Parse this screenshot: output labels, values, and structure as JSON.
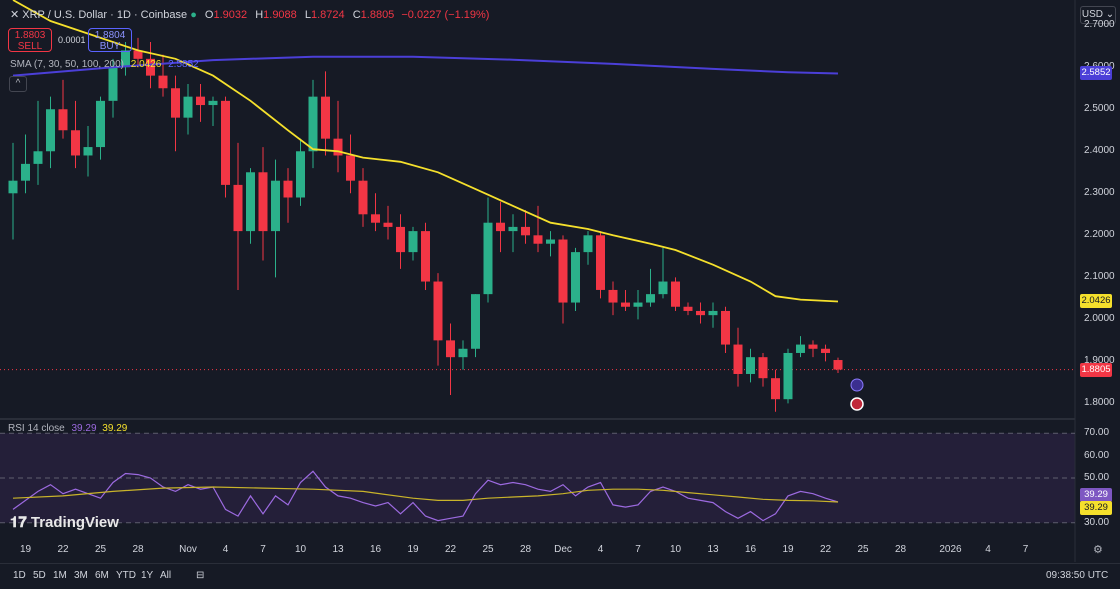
{
  "header": {
    "title": "XRP / U.S. Dollar · 1D · Coinbase",
    "open_label": "O",
    "open": "1.9032",
    "high_label": "H",
    "high": "1.9088",
    "low_label": "L",
    "low": "1.8724",
    "close_label": "C",
    "close": "1.8805",
    "change": "−0.0227 (−1.19%)"
  },
  "trade": {
    "sell_price": "1.8803",
    "sell_label": "SELL",
    "spread": "0.0001",
    "buy_price": "1.8804",
    "buy_label": "BUY"
  },
  "sma_legend": {
    "label": "SMA (7, 30, 50, 100, 200)",
    "value1": "2.0426",
    "value2": "2.5852"
  },
  "rsi_legend": {
    "label": "RSI 14 close",
    "value1": "39.29",
    "value2": "39.29"
  },
  "currency_button": "USD ⌄",
  "logo_text": "TradingView",
  "timeframes": [
    "1D",
    "5D",
    "1M",
    "3M",
    "6M",
    "YTD",
    "1Y",
    "All"
  ],
  "clock": "09:38:50 UTC",
  "colors": {
    "up": "#2bb08a",
    "down": "#f23645",
    "sma_short": "#f5e02c",
    "sma_long": "#4b3fd8",
    "rsi": "#9c6ae0",
    "background": "#161a25"
  },
  "chart_data": {
    "type": "candlestick",
    "title": "XRP / U.S. Dollar · 1D · Coinbase",
    "price_axis": {
      "range": [
        1.77,
        2.76
      ],
      "ticks": [
        "2.7000",
        "2.6000",
        "2.5000",
        "2.4000",
        "2.3000",
        "2.2000",
        "2.1000",
        "2.0000",
        "1.9000",
        "1.8000"
      ],
      "tick_values": [
        2.7,
        2.6,
        2.5,
        2.4,
        2.3,
        2.2,
        2.1,
        2.0,
        1.9,
        1.8
      ]
    },
    "rsi_axis": {
      "range": [
        25,
        75
      ],
      "ticks": [
        "70.00",
        "60.00",
        "50.00",
        "30.00"
      ],
      "tick_values": [
        70,
        60,
        50,
        30
      ]
    },
    "x_labels": [
      {
        "text": "19",
        "i": 1
      },
      {
        "text": "22",
        "i": 4
      },
      {
        "text": "25",
        "i": 7
      },
      {
        "text": "28",
        "i": 10
      },
      {
        "text": "Nov",
        "i": 14
      },
      {
        "text": "4",
        "i": 17
      },
      {
        "text": "7",
        "i": 20
      },
      {
        "text": "10",
        "i": 23
      },
      {
        "text": "13",
        "i": 26
      },
      {
        "text": "16",
        "i": 29
      },
      {
        "text": "19",
        "i": 32
      },
      {
        "text": "22",
        "i": 35
      },
      {
        "text": "25",
        "i": 38
      },
      {
        "text": "28",
        "i": 41
      },
      {
        "text": "Dec",
        "i": 44
      },
      {
        "text": "4",
        "i": 47
      },
      {
        "text": "7",
        "i": 50
      },
      {
        "text": "10",
        "i": 53
      },
      {
        "text": "13",
        "i": 56
      },
      {
        "text": "16",
        "i": 59
      },
      {
        "text": "19",
        "i": 62
      },
      {
        "text": "22",
        "i": 65
      },
      {
        "text": "25",
        "i": 68
      },
      {
        "text": "28",
        "i": 71
      },
      {
        "text": "2026",
        "i": 75
      },
      {
        "text": "4",
        "i": 78
      },
      {
        "text": "7",
        "i": 81
      }
    ],
    "candles": [
      [
        2.3,
        2.42,
        2.19,
        2.33
      ],
      [
        2.33,
        2.44,
        2.3,
        2.37
      ],
      [
        2.37,
        2.52,
        2.32,
        2.4
      ],
      [
        2.4,
        2.53,
        2.36,
        2.5
      ],
      [
        2.5,
        2.57,
        2.43,
        2.45
      ],
      [
        2.45,
        2.52,
        2.36,
        2.39
      ],
      [
        2.39,
        2.46,
        2.34,
        2.41
      ],
      [
        2.41,
        2.53,
        2.38,
        2.52
      ],
      [
        2.52,
        2.62,
        2.48,
        2.6
      ],
      [
        2.6,
        2.66,
        2.58,
        2.64
      ],
      [
        2.64,
        2.67,
        2.6,
        2.62
      ],
      [
        2.62,
        2.66,
        2.55,
        2.58
      ],
      [
        2.58,
        2.63,
        2.53,
        2.55
      ],
      [
        2.55,
        2.58,
        2.4,
        2.48
      ],
      [
        2.48,
        2.56,
        2.44,
        2.53
      ],
      [
        2.53,
        2.56,
        2.47,
        2.51
      ],
      [
        2.51,
        2.53,
        2.46,
        2.52
      ],
      [
        2.52,
        2.53,
        2.29,
        2.32
      ],
      [
        2.32,
        2.42,
        2.07,
        2.21
      ],
      [
        2.21,
        2.36,
        2.18,
        2.35
      ],
      [
        2.35,
        2.41,
        2.14,
        2.21
      ],
      [
        2.21,
        2.38,
        2.1,
        2.33
      ],
      [
        2.33,
        2.36,
        2.23,
        2.29
      ],
      [
        2.29,
        2.43,
        2.27,
        2.4
      ],
      [
        2.4,
        2.57,
        2.36,
        2.53
      ],
      [
        2.53,
        2.59,
        2.39,
        2.43
      ],
      [
        2.43,
        2.52,
        2.35,
        2.39
      ],
      [
        2.39,
        2.44,
        2.3,
        2.33
      ],
      [
        2.33,
        2.36,
        2.22,
        2.25
      ],
      [
        2.25,
        2.3,
        2.21,
        2.23
      ],
      [
        2.23,
        2.27,
        2.19,
        2.22
      ],
      [
        2.22,
        2.25,
        2.12,
        2.16
      ],
      [
        2.16,
        2.22,
        2.14,
        2.21
      ],
      [
        2.21,
        2.23,
        2.07,
        2.09
      ],
      [
        2.09,
        2.11,
        1.89,
        1.95
      ],
      [
        1.95,
        1.99,
        1.82,
        1.91
      ],
      [
        1.91,
        1.95,
        1.88,
        1.93
      ],
      [
        1.93,
        2.06,
        1.91,
        2.06
      ],
      [
        2.06,
        2.29,
        2.04,
        2.23
      ],
      [
        2.23,
        2.28,
        2.16,
        2.21
      ],
      [
        2.21,
        2.25,
        2.16,
        2.22
      ],
      [
        2.22,
        2.26,
        2.18,
        2.2
      ],
      [
        2.2,
        2.27,
        2.16,
        2.18
      ],
      [
        2.18,
        2.21,
        2.15,
        2.19
      ],
      [
        2.19,
        2.2,
        1.99,
        2.04
      ],
      [
        2.04,
        2.17,
        2.02,
        2.16
      ],
      [
        2.16,
        2.21,
        2.13,
        2.2
      ],
      [
        2.2,
        2.21,
        2.05,
        2.07
      ],
      [
        2.07,
        2.09,
        2.01,
        2.04
      ],
      [
        2.04,
        2.07,
        2.02,
        2.03
      ],
      [
        2.03,
        2.07,
        2.0,
        2.04
      ],
      [
        2.04,
        2.12,
        2.03,
        2.06
      ],
      [
        2.06,
        2.17,
        2.05,
        2.09
      ],
      [
        2.09,
        2.1,
        2.02,
        2.03
      ],
      [
        2.03,
        2.04,
        2.01,
        2.02
      ],
      [
        2.02,
        2.04,
        1.99,
        2.01
      ],
      [
        2.01,
        2.04,
        1.98,
        2.02
      ],
      [
        2.02,
        2.03,
        1.92,
        1.94
      ],
      [
        1.94,
        1.98,
        1.84,
        1.87
      ],
      [
        1.87,
        1.93,
        1.85,
        1.91
      ],
      [
        1.91,
        1.92,
        1.84,
        1.86
      ],
      [
        1.86,
        1.88,
        1.78,
        1.81
      ],
      [
        1.81,
        1.93,
        1.8,
        1.92
      ],
      [
        1.92,
        1.96,
        1.91,
        1.94
      ],
      [
        1.94,
        1.95,
        1.91,
        1.93
      ],
      [
        1.93,
        1.94,
        1.9,
        1.92
      ],
      [
        1.9032,
        1.9088,
        1.8724,
        1.8805
      ]
    ],
    "sma_yellow": [
      [
        0,
        2.76
      ],
      [
        3,
        2.71
      ],
      [
        6,
        2.68
      ],
      [
        10,
        2.64
      ],
      [
        13,
        2.62
      ],
      [
        16,
        2.58
      ],
      [
        19,
        2.52
      ],
      [
        22,
        2.45
      ],
      [
        24,
        2.405
      ],
      [
        26,
        2.4
      ],
      [
        28,
        2.385
      ],
      [
        31,
        2.375
      ],
      [
        34,
        2.35
      ],
      [
        37,
        2.31
      ],
      [
        40,
        2.27
      ],
      [
        43,
        2.23
      ],
      [
        46,
        2.215
      ],
      [
        48,
        2.2
      ],
      [
        51,
        2.18
      ],
      [
        53,
        2.165
      ],
      [
        56,
        2.13
      ],
      [
        59,
        2.09
      ],
      [
        61,
        2.055
      ],
      [
        63,
        2.047
      ],
      [
        65,
        2.044
      ],
      [
        66,
        2.0426
      ]
    ],
    "sma_blue": [
      [
        0,
        2.58
      ],
      [
        8,
        2.6
      ],
      [
        16,
        2.617
      ],
      [
        24,
        2.625
      ],
      [
        32,
        2.625
      ],
      [
        40,
        2.618
      ],
      [
        48,
        2.608
      ],
      [
        56,
        2.596
      ],
      [
        62,
        2.588
      ],
      [
        66,
        2.5852
      ]
    ],
    "rsi": [
      [
        0,
        36
      ],
      [
        2,
        44
      ],
      [
        3,
        47
      ],
      [
        4,
        43
      ],
      [
        5,
        45
      ],
      [
        7,
        41
      ],
      [
        8,
        48
      ],
      [
        9,
        52
      ],
      [
        10,
        51.5
      ],
      [
        11,
        50
      ],
      [
        12,
        46
      ],
      [
        13,
        44
      ],
      [
        14,
        47
      ],
      [
        15,
        45
      ],
      [
        16,
        46
      ],
      [
        17,
        36
      ],
      [
        18,
        33
      ],
      [
        19,
        42
      ],
      [
        20,
        34
      ],
      [
        21,
        42
      ],
      [
        22,
        38
      ],
      [
        23,
        48
      ],
      [
        24,
        53
      ],
      [
        25,
        46
      ],
      [
        26,
        42
      ],
      [
        27,
        41
      ],
      [
        28,
        39
      ],
      [
        29,
        37.5
      ],
      [
        30,
        39
      ],
      [
        31,
        34
      ],
      [
        32,
        39
      ],
      [
        33,
        33
      ],
      [
        34,
        31
      ],
      [
        35,
        32
      ],
      [
        36,
        33
      ],
      [
        37,
        43
      ],
      [
        38,
        49
      ],
      [
        39,
        47
      ],
      [
        40,
        48
      ],
      [
        41,
        47
      ],
      [
        42,
        45
      ],
      [
        43,
        44
      ],
      [
        44,
        47
      ],
      [
        45,
        42
      ],
      [
        46,
        46
      ],
      [
        47,
        48
      ],
      [
        48,
        38
      ],
      [
        49,
        37
      ],
      [
        50,
        38
      ],
      [
        51,
        44
      ],
      [
        52,
        46
      ],
      [
        53,
        44
      ],
      [
        54,
        41
      ],
      [
        55,
        40
      ],
      [
        56,
        39
      ],
      [
        57,
        35
      ],
      [
        58,
        32
      ],
      [
        59,
        35
      ],
      [
        60,
        31
      ],
      [
        61,
        34
      ],
      [
        62,
        42
      ],
      [
        63,
        44
      ],
      [
        64,
        43
      ],
      [
        65,
        41
      ],
      [
        66,
        39.29
      ]
    ],
    "rsi_ma": [
      [
        0,
        41
      ],
      [
        4,
        42
      ],
      [
        8,
        44
      ],
      [
        12,
        45.5
      ],
      [
        16,
        46
      ],
      [
        20,
        45.5
      ],
      [
        24,
        45
      ],
      [
        28,
        44
      ],
      [
        32,
        41
      ],
      [
        34,
        40
      ],
      [
        36,
        40
      ],
      [
        38,
        41
      ],
      [
        40,
        41.5
      ],
      [
        42,
        42
      ],
      [
        44,
        43
      ],
      [
        46,
        44.5
      ],
      [
        48,
        45
      ],
      [
        50,
        45
      ],
      [
        52,
        44.5
      ],
      [
        54,
        43.5
      ],
      [
        56,
        42.5
      ],
      [
        58,
        41.5
      ],
      [
        60,
        40.5
      ],
      [
        62,
        40
      ],
      [
        64,
        39.8
      ],
      [
        66,
        39.29
      ]
    ],
    "last_price": 1.8805,
    "last_price_label": "1.8805",
    "sma_yellow_last_label": "2.0426",
    "sma_blue_last_label": "2.5852",
    "rsi_last_label": "39.29",
    "rsi_ma_last_label": "39.29",
    "grid": false
  }
}
